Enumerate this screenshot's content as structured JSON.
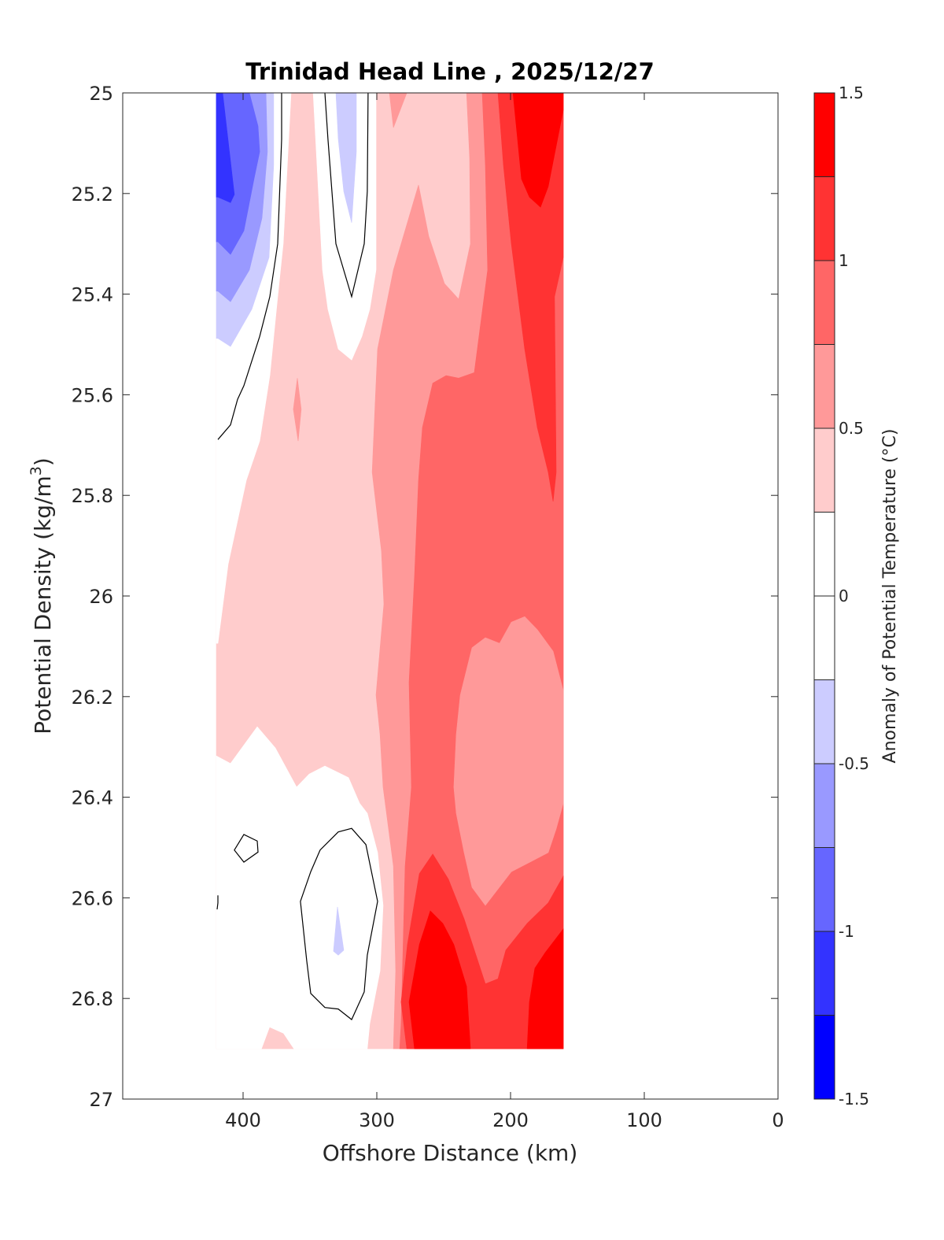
{
  "chart_data": {
    "type": "filled-contour",
    "title": "Trinidad Head Line , 2025/12/27",
    "xlabel": "Offshore Distance (km)",
    "ylabel": {
      "text": "Potential Density (kg/m",
      "superscript": "3",
      "suffix": ")"
    },
    "xlim": [
      490,
      0
    ],
    "ylim": [
      25,
      27
    ],
    "x_reversed": true,
    "y_reversed": true,
    "xticks": [
      400,
      300,
      200,
      100,
      0
    ],
    "xtick_labels": [
      "400",
      "300",
      "200",
      "100",
      "0"
    ],
    "yticks": [
      25,
      25.2,
      25.4,
      25.6,
      25.8,
      26,
      26.2,
      26.4,
      26.6,
      26.8,
      27
    ],
    "ytick_labels": [
      "25",
      "25.2",
      "25.4",
      "25.6",
      "25.8",
      "26",
      "26.2",
      "26.4",
      "26.6",
      "26.8",
      "27"
    ],
    "colorbar": {
      "label": "Anomaly of Potential Temperature (°C)",
      "range": [
        -1.5,
        1.5
      ],
      "levels": [
        -1.5,
        -1.25,
        -1,
        -0.75,
        -0.5,
        -0.25,
        0,
        0.25,
        0.5,
        0.75,
        1,
        1.25,
        1.5
      ],
      "colors": [
        "#0000ff",
        "#3333ff",
        "#6666ff",
        "#9999ff",
        "#ccccff",
        "#ffffff",
        "#ffffff",
        "#ffcccc",
        "#ff9999",
        "#ff6666",
        "#ff3333",
        "#ff0000"
      ],
      "tick_values": [
        1.5,
        1,
        0.5,
        0,
        -0.5,
        -1,
        -1.5
      ],
      "tick_labels": [
        "1.5",
        "1",
        "0.5",
        "0",
        "-0.5",
        "-1",
        "-1.5"
      ]
    },
    "regions": [
      {
        "bin": [
          0.25,
          0.5
        ],
        "points": [
          [
            420,
            25
          ],
          [
            160.6,
            25
          ],
          [
            160.6,
            26.9
          ],
          [
            420,
            26.9
          ]
        ]
      },
      {
        "bin": [
          0.5,
          0.75
        ],
        "points": [
          [
            232.9,
            25
          ],
          [
            160.6,
            25
          ],
          [
            160.6,
            26.9
          ],
          [
            287.6,
            26.9
          ],
          [
            285.9,
            26.745
          ],
          [
            287.6,
            26.537
          ],
          [
            295.3,
            26.38
          ],
          [
            297.6,
            26.275
          ],
          [
            300.6,
            26.197
          ],
          [
            294.7,
            26.016
          ],
          [
            296.5,
            25.911
          ],
          [
            303.5,
            25.754
          ],
          [
            301.2,
            25.613
          ],
          [
            299.4,
            25.509
          ],
          [
            287.6,
            25.352
          ],
          [
            268.8,
            25.183
          ],
          [
            261.2,
            25.285
          ],
          [
            249.4,
            25.379
          ],
          [
            238.8,
            25.41
          ],
          [
            230,
            25.3
          ],
          [
            230.6,
            25.128
          ]
        ]
      },
      {
        "bin": [
          0.5,
          0.75
        ],
        "points": [
          [
            290.6,
            25
          ],
          [
            277.6,
            25
          ],
          [
            287.6,
            25.069
          ]
        ]
      },
      {
        "bin": [
          0.5,
          0.75
        ],
        "points": [
          [
            359.4,
            25.567
          ],
          [
            356.5,
            25.629
          ],
          [
            358.8,
            25.692
          ],
          [
            362.4,
            25.629
          ]
        ]
      },
      {
        "bin": [
          0.75,
          1
        ],
        "points": [
          [
            221.2,
            25
          ],
          [
            160.6,
            25
          ],
          [
            160.6,
            26.9
          ],
          [
            282.9,
            26.9
          ],
          [
            281.8,
            26.85
          ],
          [
            278.8,
            26.537
          ],
          [
            274.1,
            26.38
          ],
          [
            275.9,
            26.172
          ],
          [
            271.8,
            25.962
          ],
          [
            268.8,
            25.77
          ],
          [
            265.9,
            25.665
          ],
          [
            258.2,
            25.577
          ],
          [
            248.2,
            25.562
          ],
          [
            238.8,
            25.567
          ],
          [
            227.1,
            25.556
          ],
          [
            217.1,
            25.352
          ],
          [
            218.8,
            25.144
          ]
        ]
      },
      {
        "bin": [
          0.5,
          0.75
        ],
        "points": [
          [
            228.8,
            26.103
          ],
          [
            218.8,
            26.083
          ],
          [
            208.2,
            26.094
          ],
          [
            199.4,
            26.052
          ],
          [
            189.4,
            26.041
          ],
          [
            180,
            26.067
          ],
          [
            168.2,
            26.11
          ],
          [
            160.6,
            26.188
          ],
          [
            160.6,
            26.412
          ],
          [
            165.9,
            26.463
          ],
          [
            171.8,
            26.51
          ],
          [
            187.6,
            26.532
          ],
          [
            199.4,
            26.548
          ],
          [
            218.8,
            26.615
          ],
          [
            228.8,
            26.579
          ],
          [
            234.7,
            26.51
          ],
          [
            240.6,
            26.432
          ],
          [
            242.4,
            26.38
          ],
          [
            240.6,
            26.275
          ],
          [
            237.6,
            26.197
          ]
        ]
      },
      {
        "bin": [
          1,
          1.25
        ],
        "points": [
          [
            209.4,
            25
          ],
          [
            160.6,
            25
          ],
          [
            160.6,
            25.327
          ],
          [
            167.1,
            25.405
          ],
          [
            165.9,
            25.754
          ],
          [
            168.2,
            25.812
          ],
          [
            171.8,
            25.754
          ],
          [
            180,
            25.665
          ],
          [
            189.4,
            25.509
          ],
          [
            199.4,
            25.3
          ],
          [
            205.3,
            25.144
          ]
        ]
      },
      {
        "bin": [
          1.25,
          1.5
        ],
        "points": [
          [
            198.2,
            25
          ],
          [
            160.6,
            25
          ],
          [
            160.6,
            25.034
          ],
          [
            171.8,
            25.186
          ],
          [
            177.6,
            25.227
          ],
          [
            185.9,
            25.207
          ],
          [
            191.8,
            25.171
          ]
        ]
      },
      {
        "bin": [
          1,
          1.25
        ],
        "points": [
          [
            258.2,
            26.513
          ],
          [
            246.5,
            26.563
          ],
          [
            234.7,
            26.642
          ],
          [
            218.8,
            26.771
          ],
          [
            209.4,
            26.761
          ],
          [
            203.5,
            26.704
          ],
          [
            187.6,
            26.651
          ],
          [
            171.8,
            26.61
          ],
          [
            160.6,
            26.557
          ],
          [
            160.6,
            26.9
          ],
          [
            277.6,
            26.9
          ],
          [
            281.8,
            26.807
          ],
          [
            277.1,
            26.693
          ],
          [
            268.2,
            26.552
          ]
        ]
      },
      {
        "bin": [
          1.25,
          1.5
        ],
        "points": [
          [
            260,
            26.626
          ],
          [
            250.6,
            26.651
          ],
          [
            242.4,
            26.693
          ],
          [
            232.9,
            26.776
          ],
          [
            230,
            26.9
          ],
          [
            271.8,
            26.9
          ],
          [
            275.9,
            26.807
          ],
          [
            268.2,
            26.693
          ]
        ]
      },
      {
        "bin": [
          1.25,
          1.5
        ],
        "points": [
          [
            160.6,
            26.662
          ],
          [
            160.6,
            26.9
          ],
          [
            187.6,
            26.9
          ],
          [
            185.9,
            26.807
          ],
          [
            181.8,
            26.74
          ],
          [
            174.1,
            26.709
          ]
        ]
      },
      {
        "bin": [
          0,
          0.25
        ],
        "points": [
          [
            420,
            25
          ],
          [
            364.1,
            25
          ],
          [
            370,
            25.3
          ],
          [
            374.1,
            25.405
          ],
          [
            380,
            25.562
          ],
          [
            387.6,
            25.692
          ],
          [
            397.6,
            25.77
          ],
          [
            411.2,
            25.937
          ],
          [
            418.8,
            26.094
          ],
          [
            420,
            26.094
          ]
        ]
      },
      {
        "bin": [
          -0.5,
          -0.25
        ],
        "points": [
          [
            420,
            25
          ],
          [
            377.1,
            25
          ],
          [
            377.1,
            25.144
          ],
          [
            380.6,
            25.327
          ],
          [
            393.5,
            25.43
          ],
          [
            409.4,
            25.504
          ],
          [
            418.8,
            25.488
          ],
          [
            420,
            25.488
          ]
        ]
      },
      {
        "bin": [
          -0.75,
          -0.5
        ],
        "points": [
          [
            420,
            25
          ],
          [
            382.9,
            25
          ],
          [
            381.8,
            25.117
          ],
          [
            385.9,
            25.249
          ],
          [
            395.3,
            25.352
          ],
          [
            409.4,
            25.415
          ],
          [
            418.8,
            25.394
          ],
          [
            420,
            25.394
          ]
        ]
      },
      {
        "bin": [
          -1,
          -0.75
        ],
        "points": [
          [
            420,
            25
          ],
          [
            395.3,
            25
          ],
          [
            388.8,
            25.066
          ],
          [
            387.6,
            25.117
          ],
          [
            391.8,
            25.171
          ],
          [
            399.4,
            25.274
          ],
          [
            409.4,
            25.321
          ],
          [
            418.8,
            25.296
          ],
          [
            420,
            25.296
          ]
        ]
      },
      {
        "bin": [
          -1.25,
          -1
        ],
        "points": [
          [
            420,
            25
          ],
          [
            415.3,
            25
          ],
          [
            406.5,
            25.202
          ],
          [
            409.4,
            25.218
          ],
          [
            418.8,
            25.207
          ],
          [
            420,
            25.207
          ]
        ]
      },
      {
        "bin": [
          0,
          0.25
        ],
        "points": [
          [
            347.6,
            25
          ],
          [
            300.6,
            25
          ],
          [
            300.6,
            25.352
          ],
          [
            305.3,
            25.43
          ],
          [
            311.2,
            25.484
          ],
          [
            318.8,
            25.531
          ],
          [
            328.8,
            25.509
          ],
          [
            336.5,
            25.43
          ],
          [
            340.6,
            25.352
          ],
          [
            344.7,
            25.144
          ]
        ]
      },
      {
        "bin": [
          -0.5,
          -0.25
        ],
        "points": [
          [
            330.6,
            25
          ],
          [
            315.3,
            25
          ],
          [
            315.3,
            25.117
          ],
          [
            318.8,
            25.258
          ],
          [
            324.7,
            25.196
          ],
          [
            328.8,
            25.092
          ]
        ]
      },
      {
        "bin": [
          0,
          0.25
        ],
        "points": [
          [
            420,
            26.318
          ],
          [
            409.4,
            26.333
          ],
          [
            389.4,
            26.26
          ],
          [
            375.9,
            26.302
          ],
          [
            360,
            26.38
          ],
          [
            350.6,
            26.354
          ],
          [
            338.8,
            26.338
          ],
          [
            321.2,
            26.361
          ],
          [
            312.9,
            26.412
          ],
          [
            307.1,
            26.432
          ],
          [
            299.4,
            26.51
          ],
          [
            295.3,
            26.615
          ],
          [
            297.6,
            26.745
          ],
          [
            305.3,
            26.85
          ],
          [
            307.1,
            26.9
          ],
          [
            420,
            26.9
          ]
        ]
      },
      {
        "bin": [
          0.25,
          0.5
        ],
        "points": [
          [
            385.9,
            26.9
          ],
          [
            380,
            26.858
          ],
          [
            370,
            26.87
          ],
          [
            362.4,
            26.9
          ]
        ]
      },
      {
        "bin": [
          -0.5,
          -0.25
        ],
        "points": [
          [
            329.4,
            26.618
          ],
          [
            324.7,
            26.704
          ],
          [
            328.8,
            26.714
          ],
          [
            332.4,
            26.706
          ]
        ]
      }
    ],
    "contours": [
      {
        "level": 0,
        "closed": false,
        "points": [
          [
            371.2,
            25
          ],
          [
            371.2,
            25.092
          ],
          [
            374.1,
            25.3
          ],
          [
            380,
            25.405
          ],
          [
            387.6,
            25.484
          ],
          [
            399.4,
            25.582
          ],
          [
            404.1,
            25.609
          ],
          [
            409.4,
            25.66
          ],
          [
            418.8,
            25.689
          ]
        ]
      },
      {
        "level": 0,
        "closed": false,
        "points": [
          [
            338.8,
            25
          ],
          [
            336.5,
            25.092
          ],
          [
            330.6,
            25.3
          ],
          [
            318.8,
            25.405
          ],
          [
            309.4,
            25.3
          ],
          [
            307.1,
            25.196
          ],
          [
            306.5,
            25
          ]
        ]
      },
      {
        "level": 0,
        "closed": true,
        "points": [
          [
            399.4,
            26.474
          ],
          [
            389.4,
            26.487
          ],
          [
            388.8,
            26.509
          ],
          [
            399.4,
            26.529
          ],
          [
            406.5,
            26.505
          ]
        ]
      },
      {
        "level": 0,
        "closed": true,
        "points": [
          [
            318.8,
            26.462
          ],
          [
            308.2,
            26.494
          ],
          [
            299.4,
            26.607
          ],
          [
            307.1,
            26.714
          ],
          [
            309.4,
            26.787
          ],
          [
            318.8,
            26.842
          ],
          [
            328.8,
            26.821
          ],
          [
            338.8,
            26.818
          ],
          [
            349.4,
            26.79
          ],
          [
            352.4,
            26.725
          ],
          [
            357.1,
            26.607
          ],
          [
            349.4,
            26.548
          ],
          [
            342.4,
            26.505
          ],
          [
            328.8,
            26.469
          ]
        ]
      },
      {
        "level": 0,
        "closed": false,
        "points": [
          [
            418.8,
            26.595
          ],
          [
            418.8,
            26.61
          ],
          [
            419.4,
            26.623
          ]
        ]
      }
    ]
  }
}
